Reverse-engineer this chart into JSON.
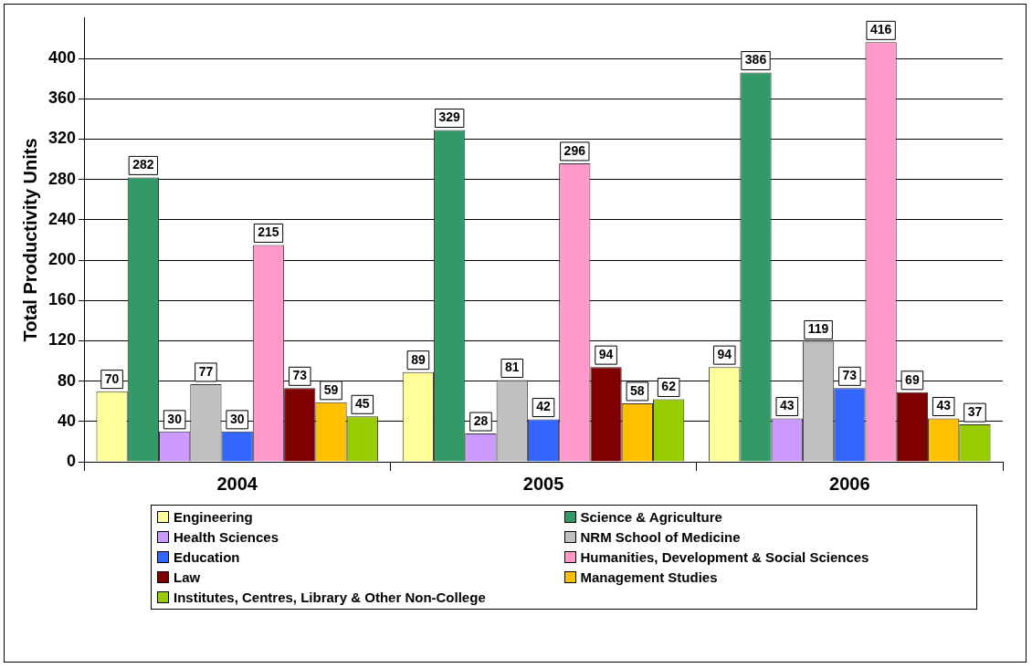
{
  "chart_data": {
    "type": "bar",
    "ylabel": "Total Productivity Units",
    "categories": [
      "2004",
      "2005",
      "2006"
    ],
    "series": [
      {
        "name": "Engineering",
        "color": "#ffff99",
        "values": [
          70,
          89,
          94
        ]
      },
      {
        "name": "Science & Agriculture",
        "color": "#339966",
        "values": [
          282,
          329,
          386
        ]
      },
      {
        "name": "Health Sciences",
        "color": "#cc99ff",
        "values": [
          30,
          28,
          43
        ]
      },
      {
        "name": "NRM School of Medicine",
        "color": "#c0c0c0",
        "values": [
          77,
          81,
          119
        ]
      },
      {
        "name": "Education",
        "color": "#3366ff",
        "values": [
          30,
          42,
          73
        ]
      },
      {
        "name": "Humanities, Development & Social Sciences",
        "color": "#ff99cc",
        "values": [
          215,
          296,
          416
        ]
      },
      {
        "name": "Law",
        "color": "#800000",
        "values": [
          73,
          94,
          69
        ]
      },
      {
        "name": "Management Studies",
        "color": "#ffc000",
        "values": [
          59,
          58,
          43
        ]
      },
      {
        "name": "Institutes, Centres, Library & Other Non-College",
        "color": "#99cc00",
        "values": [
          45,
          62,
          37
        ]
      }
    ],
    "ylim": [
      0,
      440
    ],
    "yticks": [
      0,
      40,
      80,
      120,
      160,
      200,
      240,
      280,
      320,
      360,
      400
    ],
    "grid": "y",
    "legend": "bottom",
    "data_labels": true
  }
}
